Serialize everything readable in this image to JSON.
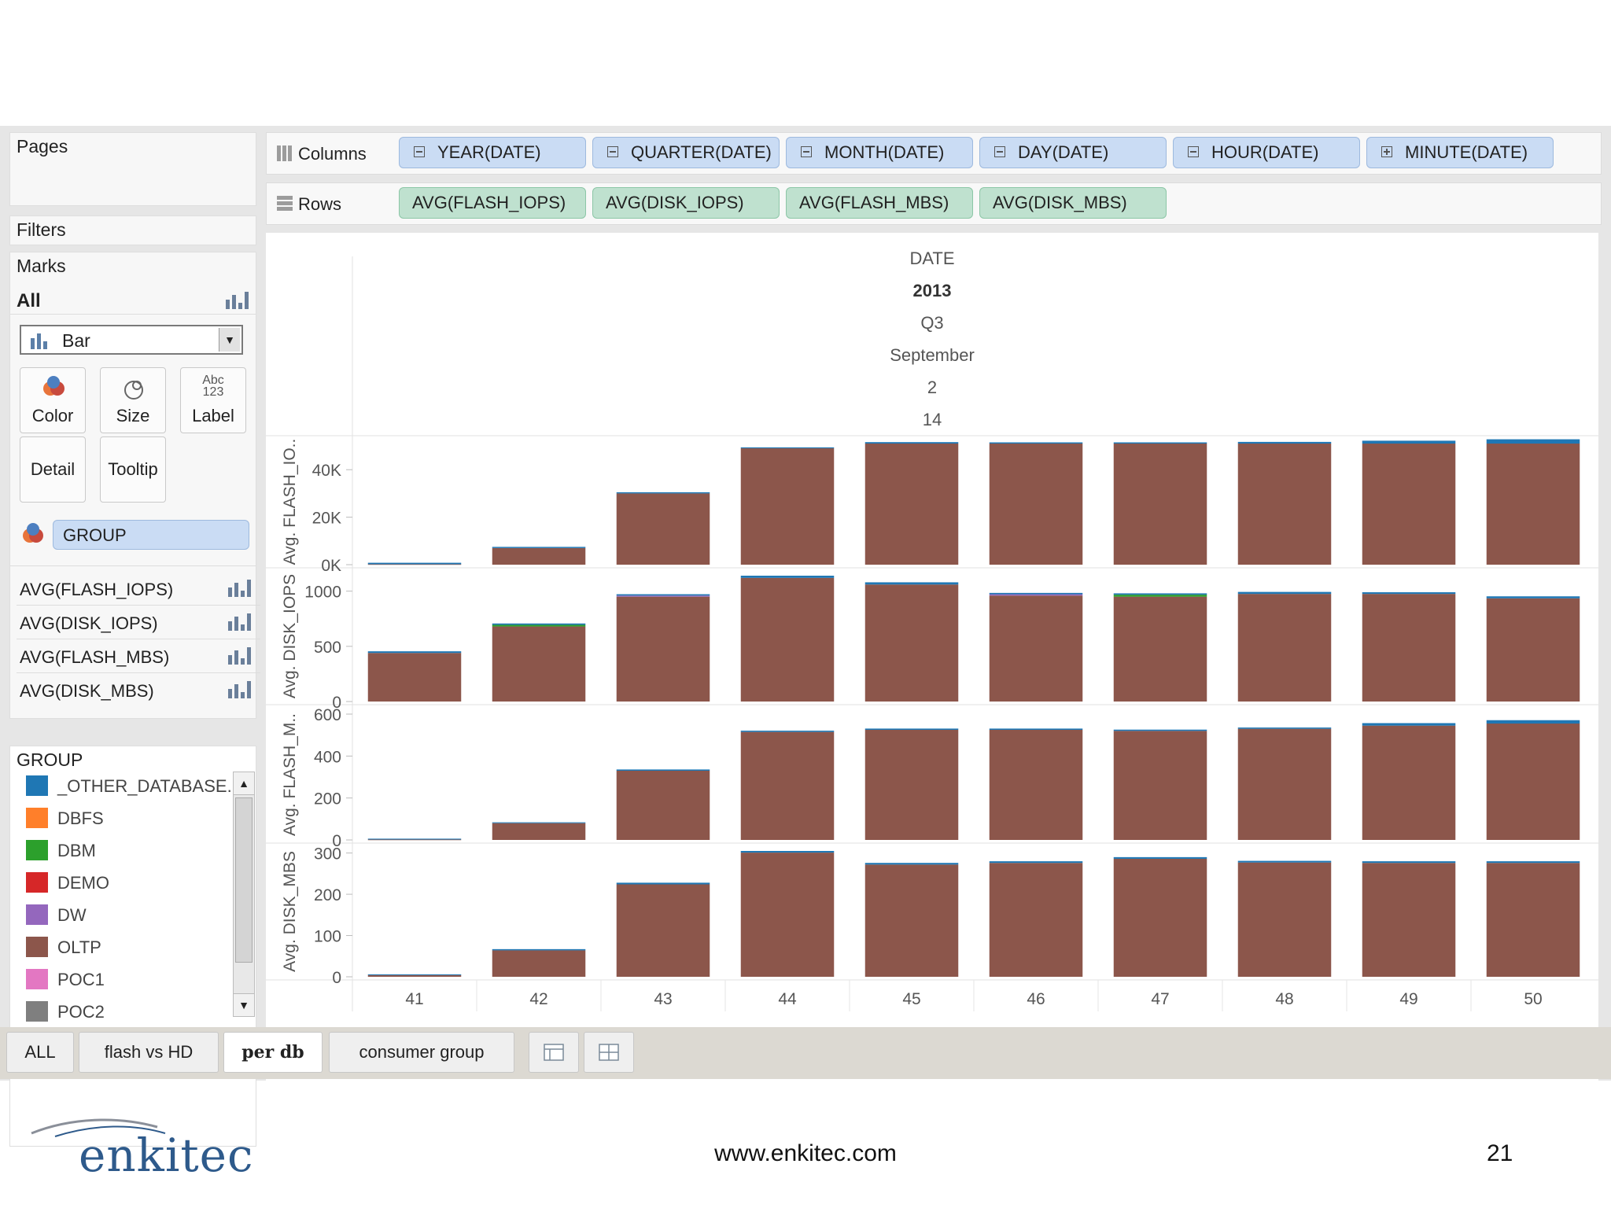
{
  "panel": {
    "pages": "Pages",
    "filters": "Filters",
    "marks": "Marks",
    "marks_all": "All",
    "mark_type": "Bar",
    "buttons": {
      "color": "Color",
      "size": "Size",
      "label": "Label",
      "detail": "Detail",
      "tooltip": "Tooltip"
    },
    "label_icon_text": [
      "Abc",
      "123"
    ],
    "group_pill": "GROUP",
    "measure_rows": [
      "AVG(FLASH_IOPS)",
      "AVG(DISK_IOPS)",
      "AVG(FLASH_MBS)",
      "AVG(DISK_MBS)"
    ],
    "legend_title": "GROUP",
    "legend": [
      {
        "label": "_OTHER_DATABASE..",
        "color": "#1f77b4"
      },
      {
        "label": "DBFS",
        "color": "#ff7f2a"
      },
      {
        "label": "DBM",
        "color": "#2ca02c"
      },
      {
        "label": "DEMO",
        "color": "#d62728"
      },
      {
        "label": "DW",
        "color": "#9467bd"
      },
      {
        "label": "OLTP",
        "color": "#8c564b"
      },
      {
        "label": "POC1",
        "color": "#e377c2"
      },
      {
        "label": "POC2",
        "color": "#7f7f7f"
      }
    ]
  },
  "shelves": {
    "columns_label": "Columns",
    "rows_label": "Rows",
    "columns": [
      "YEAR(DATE)",
      "QUARTER(DATE)",
      "MONTH(DATE)",
      "DAY(DATE)",
      "HOUR(DATE)",
      "MINUTE(DATE)"
    ],
    "rows": [
      "AVG(FLASH_IOPS)",
      "AVG(DISK_IOPS)",
      "AVG(FLASH_MBS)",
      "AVG(DISK_MBS)"
    ]
  },
  "chart_header": [
    "DATE",
    "2013",
    "Q3",
    "September",
    "2",
    "14"
  ],
  "chart_data": {
    "type": "bar",
    "categories": [
      "41",
      "42",
      "43",
      "44",
      "45",
      "46",
      "47",
      "48",
      "49",
      "50"
    ],
    "stack_colors": {
      "OLTP": "#8c564b",
      "_OTHER_DATABASE..": "#1f77b4",
      "DBM": "#2ca02c",
      "DW": "#9467bd"
    },
    "panes": [
      {
        "ylabel": "Avg. FLASH_IO..",
        "ylim": [
          0,
          51000
        ],
        "ticks": [
          {
            "v": 0,
            "t": "0K"
          },
          {
            "v": 20000,
            "t": "20K"
          },
          {
            "v": 40000,
            "t": "40K"
          }
        ],
        "series": [
          {
            "name": "OLTP",
            "values": [
              200,
              7000,
              30000,
              49000,
              51000,
              51000,
              51000,
              51000,
              51000,
              51000
            ]
          },
          {
            "name": "_OTHER_DATABASE..",
            "values": [
              600,
              500,
              500,
              400,
              600,
              500,
              500,
              700,
              1200,
              1800
            ]
          }
        ]
      },
      {
        "ylabel": "Avg. DISK_IOPS",
        "ylim": [
          0,
          1140
        ],
        "ticks": [
          {
            "v": 0,
            "t": "0"
          },
          {
            "v": 500,
            "t": "500"
          },
          {
            "v": 1000,
            "t": "1000"
          }
        ],
        "series": [
          {
            "name": "OLTP",
            "values": [
              440,
              680,
              950,
              1120,
              1060,
              960,
              950,
              975,
              975,
              935
            ]
          },
          {
            "name": "DW",
            "values": [
              0,
              0,
              10,
              0,
              0,
              12,
              0,
              0,
              0,
              0
            ]
          },
          {
            "name": "DBM",
            "values": [
              0,
              15,
              0,
              0,
              0,
              0,
              18,
              0,
              0,
              0
            ]
          },
          {
            "name": "_OTHER_DATABASE..",
            "values": [
              15,
              12,
              12,
              20,
              20,
              12,
              12,
              18,
              15,
              18
            ]
          }
        ]
      },
      {
        "ylabel": "Avg. FLASH_M..",
        "ylim": [
          0,
          600
        ],
        "ticks": [
          {
            "v": 0,
            "t": "0"
          },
          {
            "v": 200,
            "t": "200"
          },
          {
            "v": 400,
            "t": "400"
          },
          {
            "v": 600,
            "t": "600"
          }
        ],
        "series": [
          {
            "name": "OLTP",
            "values": [
              2,
              80,
              330,
              515,
              525,
              525,
              520,
              530,
              545,
              555
            ]
          },
          {
            "name": "_OTHER_DATABASE..",
            "values": [
              4,
              4,
              6,
              6,
              6,
              6,
              6,
              6,
              12,
              16
            ]
          }
        ]
      },
      {
        "ylabel": "Avg. DISK_MBS",
        "ylim": [
          0,
          305
        ],
        "ticks": [
          {
            "v": 0,
            "t": "0"
          },
          {
            "v": 100,
            "t": "100"
          },
          {
            "v": 200,
            "t": "200"
          },
          {
            "v": 300,
            "t": "300"
          }
        ],
        "series": [
          {
            "name": "OLTP",
            "values": [
              4,
              64,
              224,
              301,
              272,
              276,
              286,
              277,
              276,
              276
            ]
          },
          {
            "name": "_OTHER_DATABASE..",
            "values": [
              2,
              3,
              4,
              4,
              4,
              4,
              4,
              4,
              4,
              4
            ]
          }
        ]
      }
    ]
  },
  "tabs": [
    "ALL",
    "flash vs HD",
    "per db",
    "consumer group"
  ],
  "active_tab": "per db",
  "footer": {
    "url": "www.enkitec.com",
    "page": "21",
    "logo": "enkitec"
  }
}
